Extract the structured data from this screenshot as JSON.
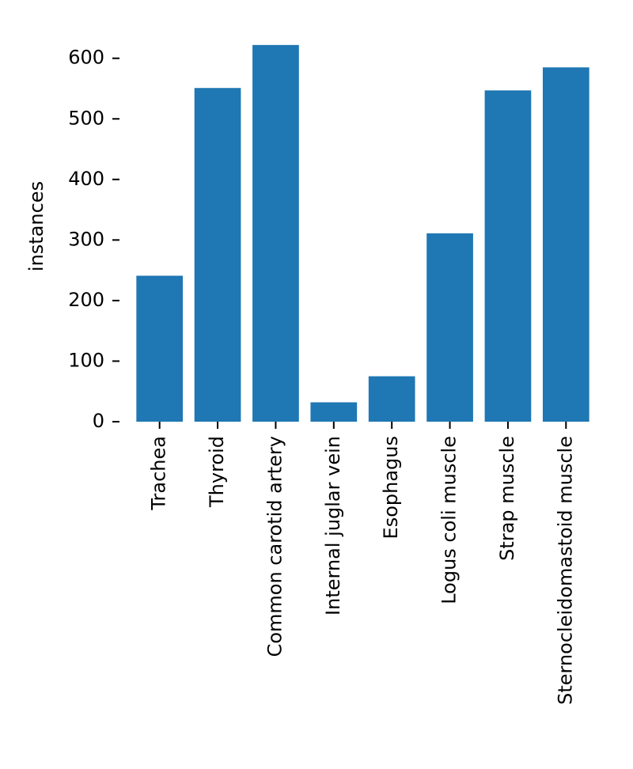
{
  "chart_data": {
    "type": "bar",
    "ylabel": "instances",
    "xlabel": "",
    "ylim": [
      0,
      625
    ],
    "yticks": [
      0,
      100,
      200,
      300,
      400,
      500,
      600
    ],
    "grid": false,
    "categories": [
      "Trachea",
      "Thyroid",
      "Common carotid artery",
      "Internal juglar vein",
      "Esophagus",
      "Logus coli muscle",
      "Strap muscle",
      "Sternocleidomastoid muscle"
    ],
    "values": [
      241,
      551,
      622,
      32,
      75,
      311,
      547,
      585
    ],
    "bar_color": "#1f77b4"
  }
}
